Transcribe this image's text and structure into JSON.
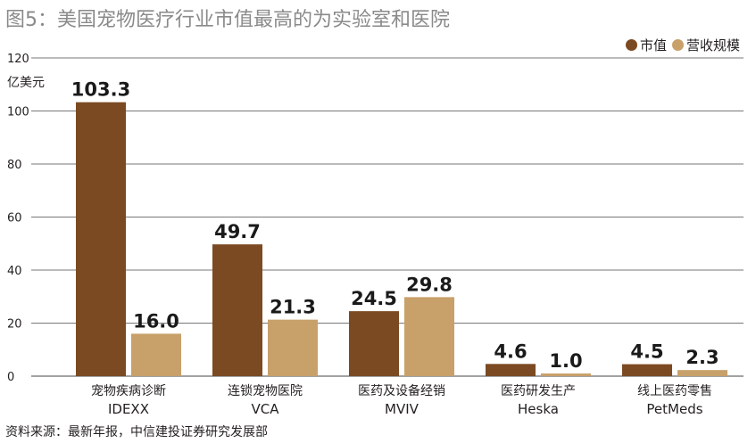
{
  "title": "图5：美国宠物医疗行业市值最高的为实验室和医院",
  "unit_label": "亿美元",
  "source": "资料来源：最新年报，中信建投证券研究发展部",
  "colors": {
    "market_cap": "#7b4a22",
    "revenue": "#c8a06a",
    "grid": "#777777"
  },
  "chart_data": {
    "type": "bar",
    "title": "图5：美国宠物医疗行业市值最高的为实验室和医院",
    "ylabel": "亿美元",
    "ylim": [
      0,
      120
    ],
    "yticks": [
      0,
      20,
      40,
      60,
      80,
      100,
      120
    ],
    "grid": true,
    "legend_position": "top-right",
    "categories": [
      {
        "cn": "宠物疾病诊断",
        "en": "IDEXX"
      },
      {
        "cn": "连锁宠物医院",
        "en": "VCA"
      },
      {
        "cn": "医药及设备经销",
        "en": "MVIV"
      },
      {
        "cn": "医药研发生产",
        "en": "Heska"
      },
      {
        "cn": "线上医药零售",
        "en": "PetMeds"
      }
    ],
    "series": [
      {
        "name": "市值",
        "values": [
          103.3,
          49.7,
          24.5,
          4.6,
          4.5
        ],
        "labels": [
          "103.3",
          "49.7",
          "24.5",
          "4.6",
          "4.5"
        ]
      },
      {
        "name": "营收规模",
        "values": [
          16.0,
          21.3,
          29.8,
          1.0,
          2.3
        ],
        "labels": [
          "16.0",
          "21.3",
          "29.8",
          "1.0",
          "2.3"
        ]
      }
    ]
  }
}
